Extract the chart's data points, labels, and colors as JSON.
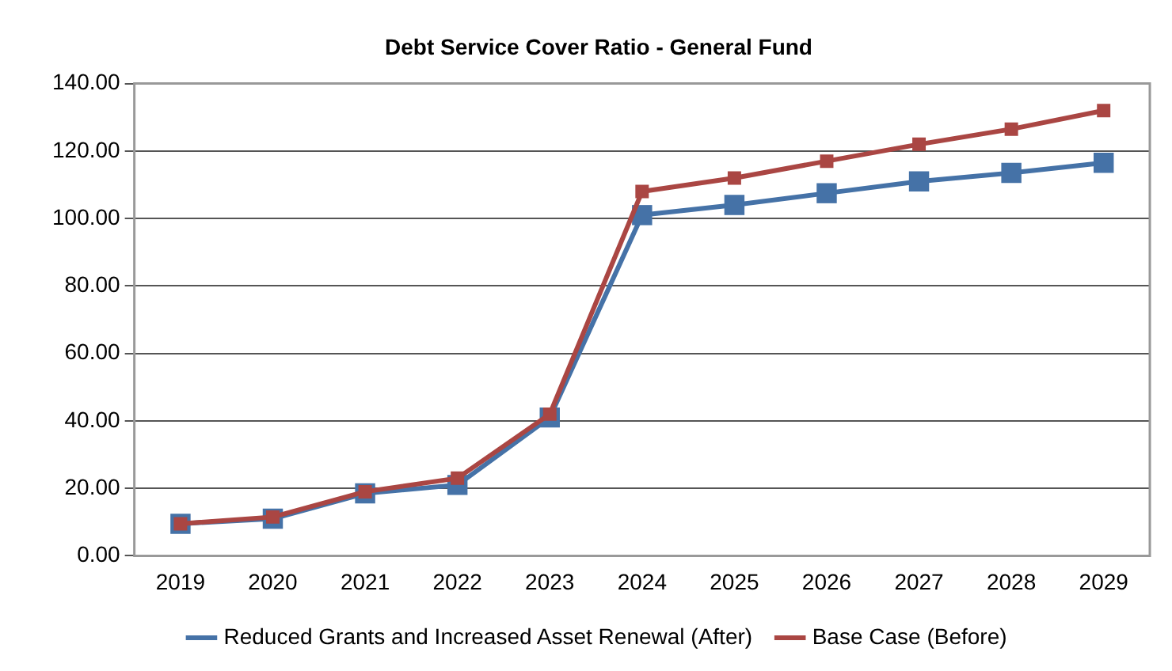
{
  "chart_data": {
    "type": "line",
    "title": "Debt Service Cover Ratio - General Fund",
    "categories": [
      "2019",
      "2020",
      "2021",
      "2022",
      "2023",
      "2024",
      "2025",
      "2026",
      "2027",
      "2028",
      "2029"
    ],
    "series": [
      {
        "name": "Reduced Grants and Increased Asset Renewal (After)",
        "color": "#4572a7",
        "values": [
          9.5,
          11,
          18.5,
          21,
          41,
          101,
          104,
          107.5,
          111,
          113.5,
          116.5
        ]
      },
      {
        "name": "Base Case (Before)",
        "color": "#aa4643",
        "values": [
          9.5,
          11.5,
          19,
          23,
          42,
          108,
          112,
          117,
          122,
          126.5,
          132
        ]
      }
    ],
    "ylim": [
      0,
      140
    ],
    "yticks": [
      {
        "value": 0,
        "label": "0.00"
      },
      {
        "value": 20,
        "label": "20.00"
      },
      {
        "value": 40,
        "label": "40.00"
      },
      {
        "value": 60,
        "label": "60.00"
      },
      {
        "value": 80,
        "label": "80.00"
      },
      {
        "value": 100,
        "label": "100.00"
      },
      {
        "value": 120,
        "label": "120.00"
      },
      {
        "value": 140,
        "label": "140.00"
      }
    ],
    "grid": "y",
    "legend": "bottom",
    "marker": "square",
    "line_style": "solid"
  }
}
